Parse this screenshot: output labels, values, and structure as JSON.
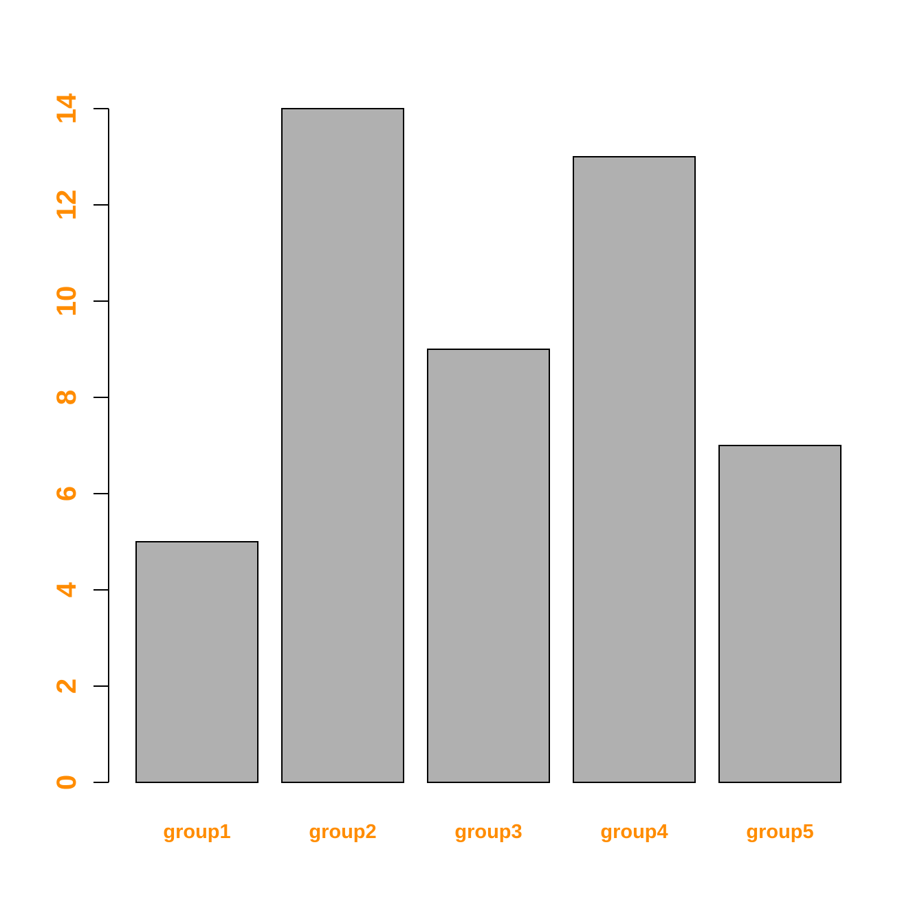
{
  "chart_data": {
    "type": "bar",
    "categories": [
      "group1",
      "group2",
      "group3",
      "group4",
      "group5"
    ],
    "values": [
      5,
      14,
      9,
      13,
      7
    ],
    "title": "",
    "xlabel": "",
    "ylabel": "",
    "ylim": [
      0,
      14
    ],
    "yticks": [
      "0",
      "2",
      "4",
      "6",
      "8",
      "10",
      "12",
      "14"
    ],
    "grid": false,
    "colors": {
      "bar_fill": "#b0b0b0",
      "bar_border": "#000000",
      "label_color": "#ff8c00",
      "axis_color": "#000000"
    }
  }
}
